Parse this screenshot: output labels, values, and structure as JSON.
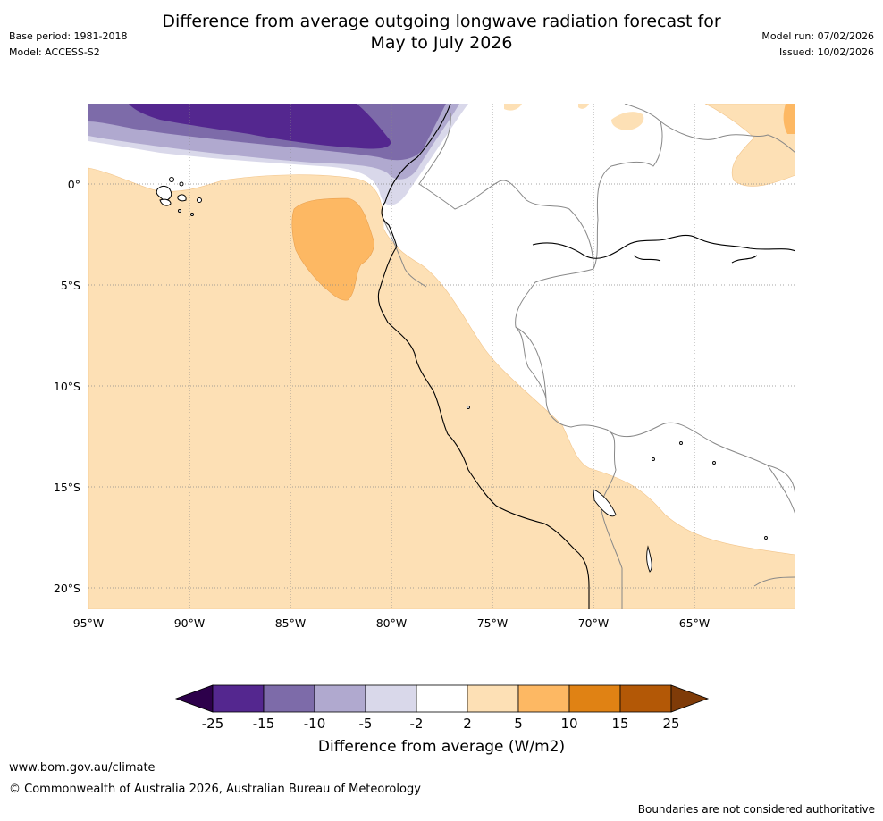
{
  "title_line1": "Difference from average outgoing longwave radiation forecast for",
  "title_line2": "May to July 2026",
  "meta_left": {
    "base_period": "Base period: 1981-2018",
    "model": "Model: ACCESS-S2"
  },
  "meta_right": {
    "model_run": "Model run: 07/02/2026",
    "issued": "Issued: 10/02/2026"
  },
  "map": {
    "lat_labels": [
      "0°",
      "5°S",
      "10°S",
      "15°S",
      "20°S"
    ],
    "lon_labels": [
      "95°W",
      "90°W",
      "85°W",
      "80°W",
      "75°W",
      "70°W",
      "65°W"
    ],
    "regions": [
      {
        "category": "-25 to -15",
        "color": "#54278f"
      },
      {
        "category": "-15 to -10",
        "color": "#7d6ba9"
      },
      {
        "category": "-10 to -5",
        "color": "#b0a9cf"
      },
      {
        "category": "-5 to -2",
        "color": "#d9d8ea"
      },
      {
        "category": "2 to 5",
        "color": "#fde0b5"
      },
      {
        "category": "5 to 10",
        "color": "#fdb863"
      }
    ]
  },
  "colorbar": {
    "ticks": [
      "-25",
      "-15",
      "-10",
      "-5",
      "-2",
      "2",
      "5",
      "10",
      "15",
      "25"
    ],
    "colors": [
      "#2d004b",
      "#54278f",
      "#7d6ba9",
      "#b0a9cf",
      "#d9d8ea",
      "#ffffff",
      "#fde0b5",
      "#fdb863",
      "#e08214",
      "#b35806",
      "#7f3b08"
    ],
    "label": "Difference from average (W/m2)"
  },
  "footer": {
    "url": "www.bom.gov.au/climate",
    "copyright": "© Commonwealth of Australia 2026, Australian Bureau of Meteorology",
    "disclaimer": "Boundaries are not considered authoritative"
  }
}
